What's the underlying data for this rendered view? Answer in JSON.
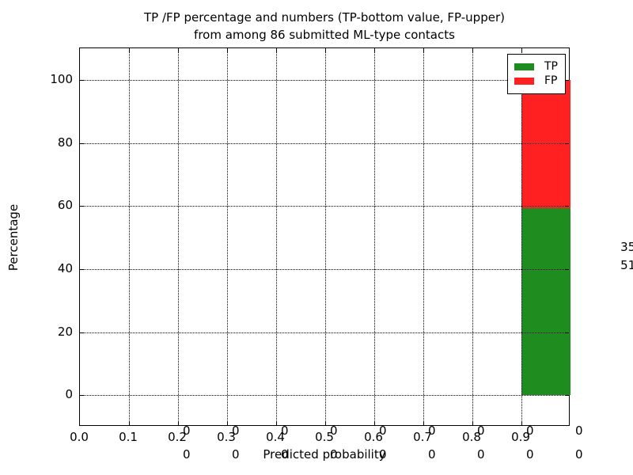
{
  "figure": {
    "title_line1": "TP /FP percentage and numbers (TP-bottom value, FP-upper)",
    "title_line2": "from among 86 submitted ML-type contacts",
    "xlabel": "Predicted probability",
    "ylabel": "Percentage"
  },
  "chart_data": {
    "type": "bar",
    "stacked": true,
    "title": "TP /FP percentage and numbers (TP-bottom value, FP-upper)\nfrom among 86 submitted ML-type contacts",
    "xlabel": "Predicted probability",
    "ylabel": "Percentage",
    "xlim": [
      0.0,
      1.0
    ],
    "ylim": [
      -10,
      110
    ],
    "xtick_labels": [
      "0.0",
      "0.1",
      "0.2",
      "0.3",
      "0.4",
      "0.5",
      "0.6",
      "0.7",
      "0.8",
      "0.9"
    ],
    "xtick_values": [
      0.0,
      0.1,
      0.2,
      0.3,
      0.4,
      0.5,
      0.6,
      0.7,
      0.8,
      0.9
    ],
    "ytick_values": [
      0,
      20,
      40,
      60,
      80,
      100
    ],
    "grid": true,
    "grid_style": "dotted",
    "total_contacts": 86,
    "bin_width": 0.1,
    "series": [
      {
        "name": "TP",
        "color": "#1E8C1E",
        "values": [
          0,
          0,
          0,
          0,
          0,
          0,
          0,
          0,
          0,
          51
        ]
      },
      {
        "name": "FP",
        "color": "#FF2121",
        "values": [
          0,
          0,
          0,
          0,
          0,
          0,
          0,
          0,
          0,
          35
        ]
      }
    ],
    "bins": [
      {
        "range": [
          0.0,
          0.1
        ],
        "tp": 0,
        "fp": 0,
        "tp_pct": 0,
        "fp_pct": 0
      },
      {
        "range": [
          0.1,
          0.2
        ],
        "tp": 0,
        "fp": 0,
        "tp_pct": 0,
        "fp_pct": 0
      },
      {
        "range": [
          0.2,
          0.3
        ],
        "tp": 0,
        "fp": 0,
        "tp_pct": 0,
        "fp_pct": 0
      },
      {
        "range": [
          0.3,
          0.4
        ],
        "tp": 0,
        "fp": 0,
        "tp_pct": 0,
        "fp_pct": 0
      },
      {
        "range": [
          0.4,
          0.5
        ],
        "tp": 0,
        "fp": 0,
        "tp_pct": 0,
        "fp_pct": 0
      },
      {
        "range": [
          0.5,
          0.6
        ],
        "tp": 0,
        "fp": 0,
        "tp_pct": 0,
        "fp_pct": 0
      },
      {
        "range": [
          0.6,
          0.7
        ],
        "tp": 0,
        "fp": 0,
        "tp_pct": 0,
        "fp_pct": 0
      },
      {
        "range": [
          0.7,
          0.8
        ],
        "tp": 0,
        "fp": 0,
        "tp_pct": 0,
        "fp_pct": 0
      },
      {
        "range": [
          0.8,
          0.9
        ],
        "tp": 0,
        "fp": 0,
        "tp_pct": 0,
        "fp_pct": 0
      },
      {
        "range": [
          0.9,
          1.0
        ],
        "tp": 51,
        "fp": 35,
        "tp_pct": 59.3,
        "fp_pct": 40.7
      }
    ],
    "legend": {
      "position": "upper right",
      "entries": [
        {
          "label": "TP",
          "color": "#1E8C1E"
        },
        {
          "label": "FP",
          "color": "#FF2121"
        }
      ]
    }
  }
}
